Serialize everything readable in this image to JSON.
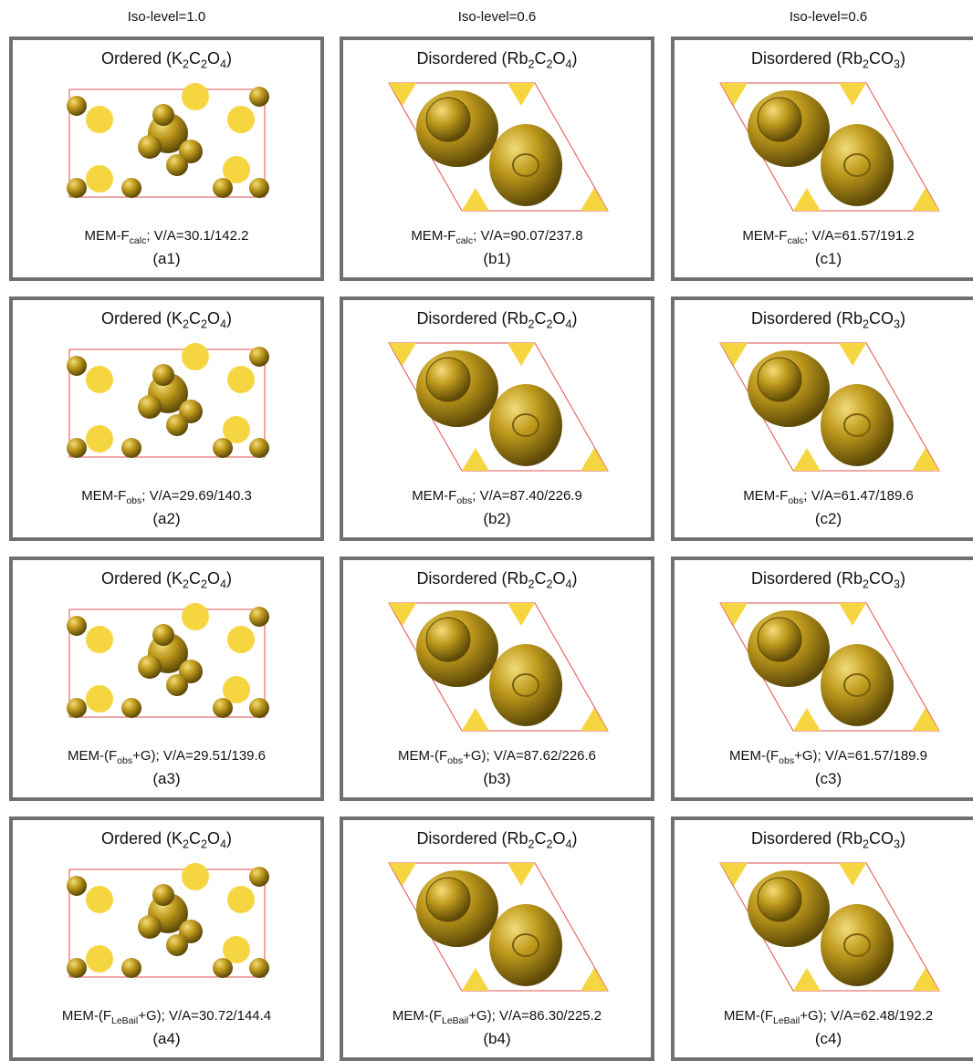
{
  "columns": [
    "Iso-level=1.0",
    "Iso-level=0.6",
    "Iso-level=0.6"
  ],
  "panels": [
    [
      {
        "title": [
          "Ordered (K",
          "2",
          "C",
          "2",
          "O",
          "4",
          ")"
        ],
        "caption": [
          "MEM-F",
          "calc",
          "; V/A=30.1/142.2"
        ],
        "label": "(a1)"
      },
      {
        "title": [
          "Disordered (Rb",
          "2",
          "C",
          "2",
          "O",
          "4",
          ")"
        ],
        "caption": [
          "MEM-F",
          "calc",
          "; V/A=90.07/237.8"
        ],
        "label": "(b1)"
      },
      {
        "title": [
          "Disordered (Rb",
          "2",
          "CO",
          "3",
          ")"
        ],
        "caption": [
          "MEM-F",
          "calc",
          "; V/A=61.57/191.2"
        ],
        "label": "(c1)"
      }
    ],
    [
      {
        "title": [
          "Ordered (K",
          "2",
          "C",
          "2",
          "O",
          "4",
          ")"
        ],
        "caption": [
          "MEM-F",
          "obs",
          "; V/A=29.69/140.3"
        ],
        "label": "(a2)"
      },
      {
        "title": [
          "Disordered (Rb",
          "2",
          "C",
          "2",
          "O",
          "4",
          ")"
        ],
        "caption": [
          "MEM-F",
          "obs",
          "; V/A=87.40/226.9"
        ],
        "label": "(b2)"
      },
      {
        "title": [
          "Disordered (Rb",
          "2",
          "CO",
          "3",
          ")"
        ],
        "caption": [
          "MEM-F",
          "obs",
          "; V/A=61.47/189.6"
        ],
        "label": "(c2)"
      }
    ],
    [
      {
        "title": [
          "Ordered (K",
          "2",
          "C",
          "2",
          "O",
          "4",
          ")"
        ],
        "caption": [
          "MEM-(F",
          "obs",
          "+G); V/A=29.51/139.6"
        ],
        "label": "(a3)"
      },
      {
        "title": [
          "Disordered (Rb",
          "2",
          "C",
          "2",
          "O",
          "4",
          ")"
        ],
        "caption": [
          "MEM-(F",
          "obs",
          "+G); V/A=87.62/226.6"
        ],
        "label": "(b3)"
      },
      {
        "title": [
          "Disordered (Rb",
          "2",
          "CO",
          "3",
          ")"
        ],
        "caption": [
          "MEM-(F",
          "obs",
          "+G); V/A=61.57/189.9"
        ],
        "label": "(c3)"
      }
    ],
    [
      {
        "title": [
          "Ordered (K",
          "2",
          "C",
          "2",
          "O",
          "4",
          ")"
        ],
        "caption": [
          "MEM-(F",
          "LeBail",
          "+G); V/A=30.72/144.4"
        ],
        "label": "(a4)"
      },
      {
        "title": [
          "Disordered (Rb",
          "2",
          "C",
          "2",
          "O",
          "4",
          ")"
        ],
        "caption": [
          "MEM-(F",
          "LeBail",
          "+G); V/A=86.30/225.2"
        ],
        "label": "(b4)"
      },
      {
        "title": [
          "Disordered (Rb",
          "2",
          "CO",
          "3",
          ")"
        ],
        "caption": [
          "MEM-(F",
          "LeBail",
          "+G); V/A=62.48/192.2"
        ],
        "label": "(c4)"
      }
    ]
  ]
}
